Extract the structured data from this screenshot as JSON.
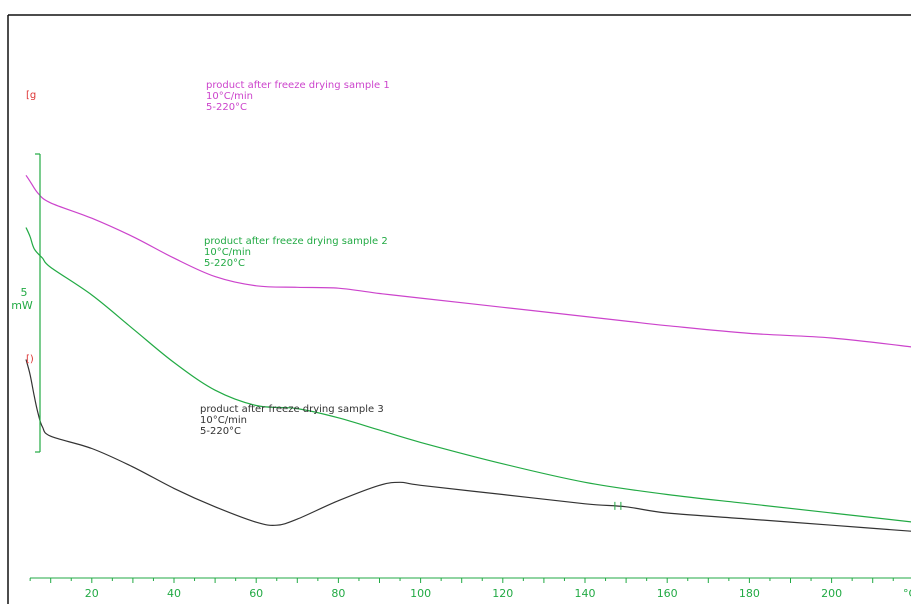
{
  "chart_data": {
    "type": "line",
    "title": "",
    "xlabel": "",
    "ylabel": "",
    "x_unit": "°C",
    "xlim": [
      4,
      220
    ],
    "x_ticks": [
      20,
      40,
      60,
      80,
      100,
      120,
      140,
      160,
      180,
      200
    ],
    "scale_bar": {
      "value": "5",
      "unit": "mW"
    },
    "grid": false,
    "colors": {
      "sample1": "#cc44cc",
      "sample2": "#22aa44",
      "sample3": "#333333",
      "axis": "#22aa44",
      "marker": "#dd3333"
    },
    "series": [
      {
        "name": "product after freeze drying sample 1",
        "rate": "10°C/min",
        "range": "5-220°C",
        "marker": "[g",
        "x": [
          4,
          5,
          7,
          10,
          20,
          30,
          40,
          50,
          60,
          70,
          80,
          90,
          100,
          120,
          140,
          150,
          160,
          180,
          200,
          220
        ],
        "y": [
          82,
          80,
          76,
          73,
          68,
          62,
          55,
          49,
          46,
          45.5,
          45.2,
          43.5,
          42,
          39,
          36,
          34.5,
          33,
          30.5,
          29,
          26
        ]
      },
      {
        "name": "product after freeze drying sample 2",
        "rate": "10°C/min",
        "range": "5-220°C",
        "marker": "",
        "x": [
          4,
          5,
          6,
          8,
          10,
          20,
          30,
          40,
          50,
          60,
          70,
          80,
          90,
          100,
          120,
          140,
          160,
          180,
          200,
          220
        ],
        "y": [
          65,
          62,
          58,
          55,
          52,
          43,
          32,
          21,
          12,
          7,
          6,
          3,
          -1,
          -5,
          -12,
          -18,
          -22,
          -25,
          -28,
          -31
        ]
      },
      {
        "name": "product after freeze drying sample 3",
        "rate": "10°C/min",
        "range": "5-220°C",
        "marker": "[)",
        "x": [
          4,
          5,
          6,
          7,
          8,
          10,
          20,
          30,
          40,
          50,
          60,
          65,
          70,
          80,
          90,
          95,
          100,
          120,
          140,
          150,
          160,
          180,
          200,
          220
        ],
        "y": [
          22,
          17,
          10,
          4,
          0,
          -3,
          -7,
          -13,
          -20,
          -26,
          -31,
          -32,
          -30,
          -24,
          -19,
          -18,
          -19,
          -22,
          -25,
          -26,
          -28,
          -30,
          -32,
          -34
        ]
      }
    ]
  }
}
